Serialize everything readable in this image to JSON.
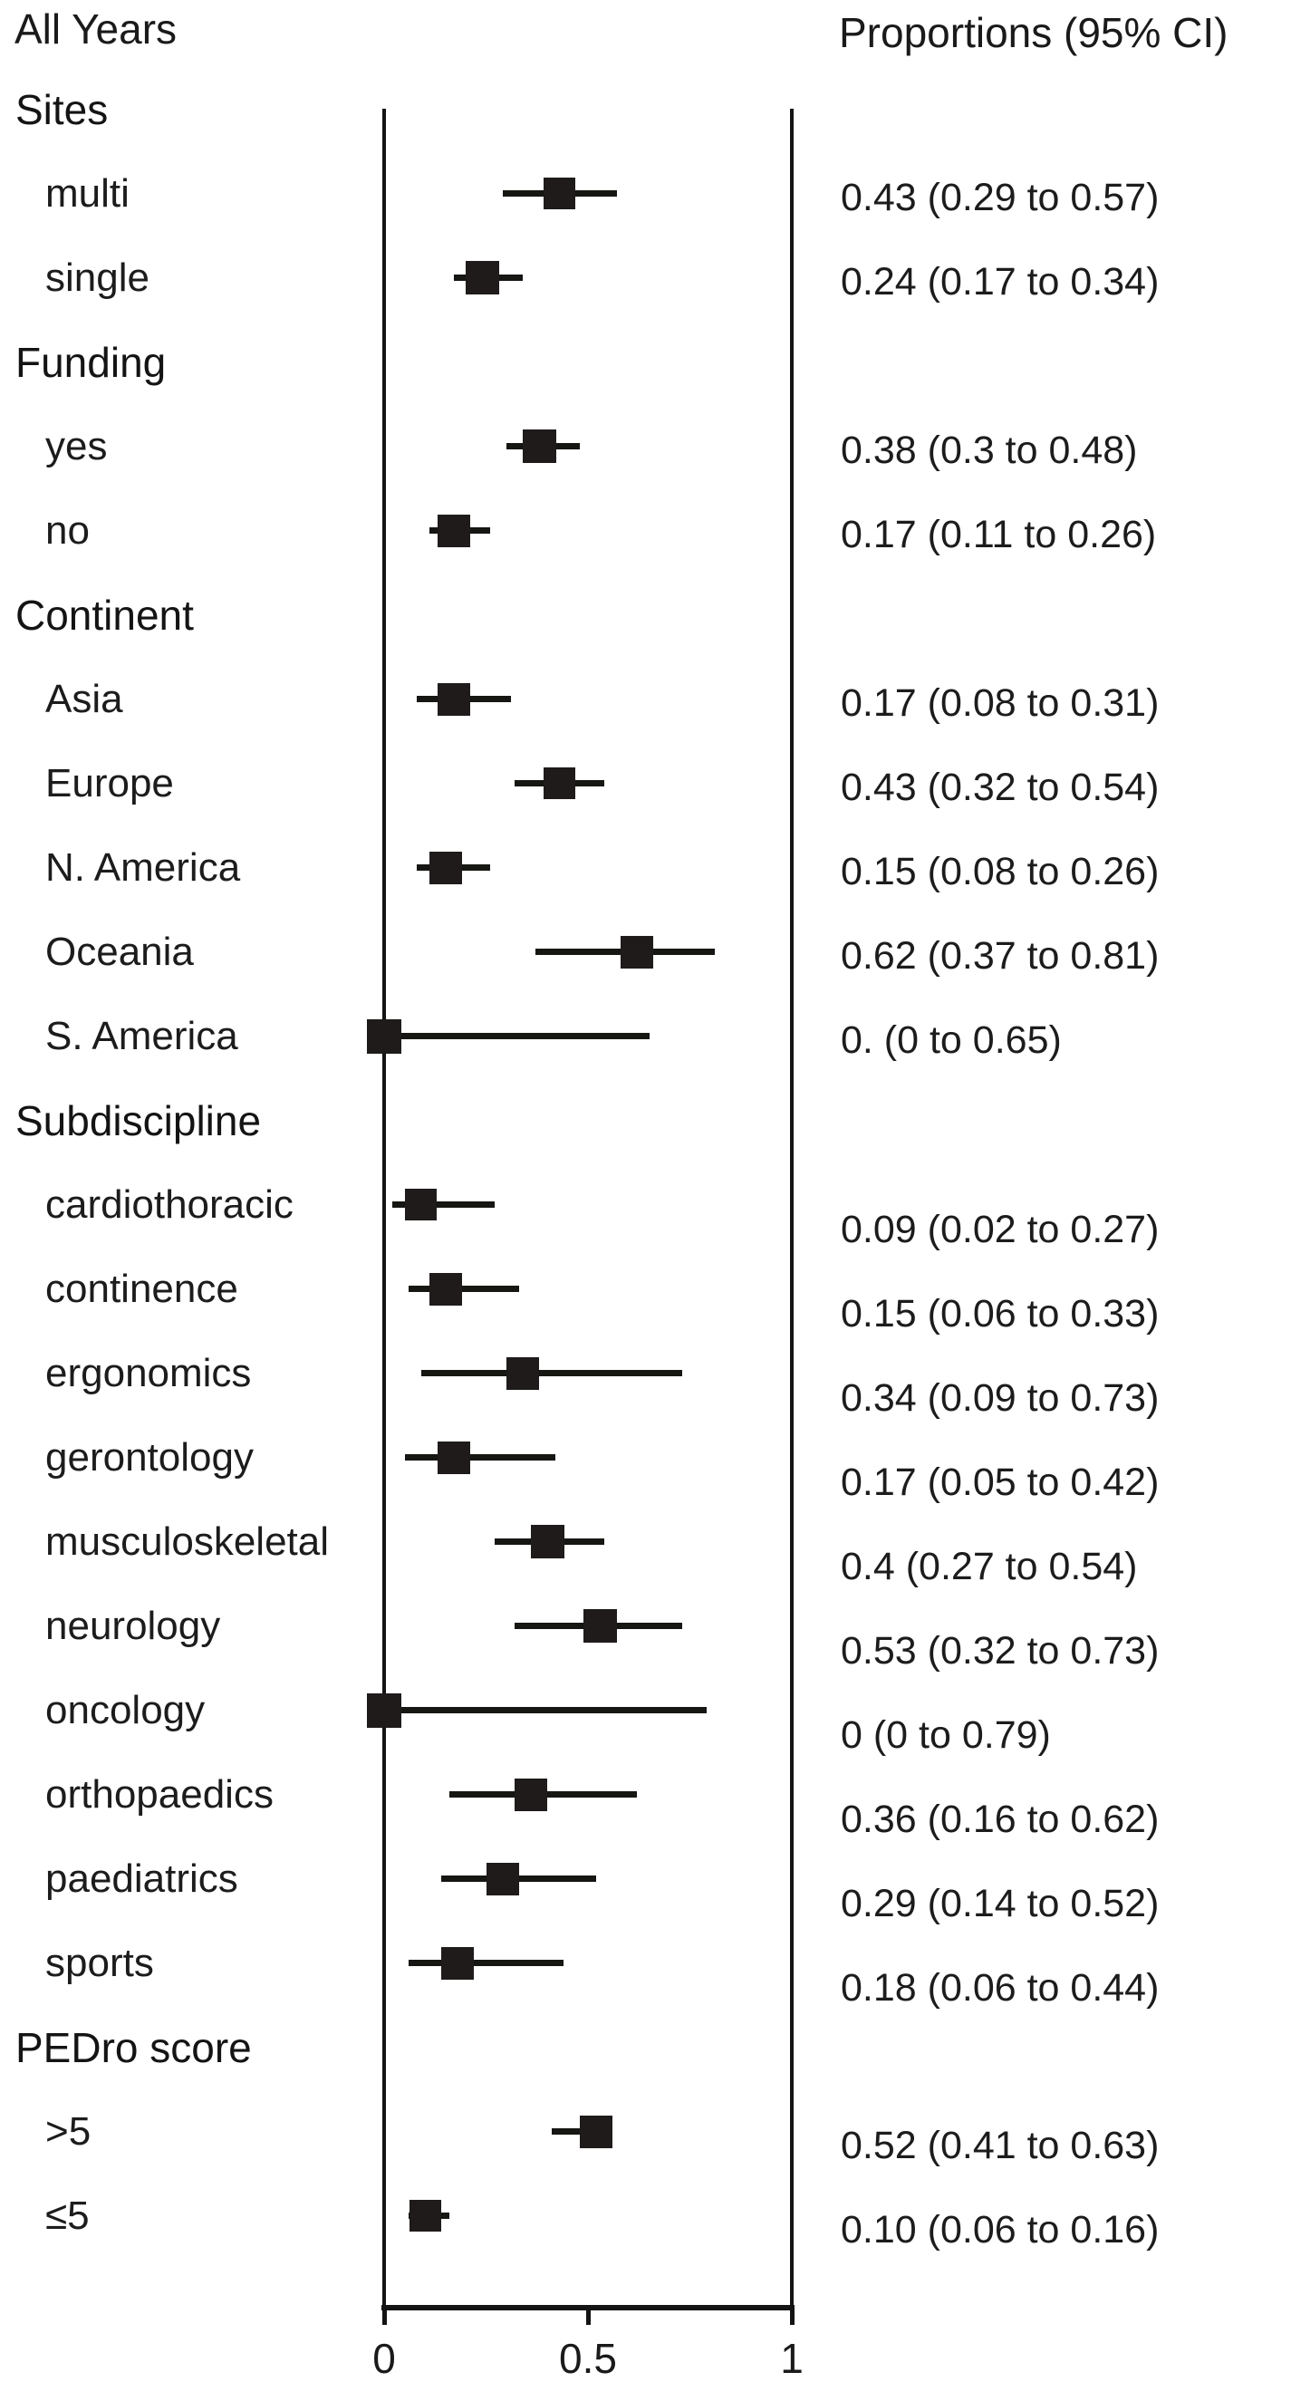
{
  "colors": {
    "ink": "#1a1a1a",
    "marker": "#1e1b1a",
    "background": "#ffffff"
  },
  "chart_data": {
    "type": "forest",
    "title": "All Years",
    "value_header": "Proportions (95% CI)",
    "xlabel": "",
    "xlim": [
      0,
      1
    ],
    "x_tick_values": [
      0,
      0.5,
      1
    ],
    "x_tick_labels": [
      "0",
      "0.5",
      "1"
    ],
    "legend": "none",
    "grid": false,
    "groups": [
      {
        "label": "Sites",
        "rows": [
          {
            "label": "multi",
            "est": 0.43,
            "lo": 0.29,
            "hi": 0.57,
            "text": "0.43 (0.29 to 0.57)",
            "box": 35
          },
          {
            "label": "single",
            "est": 0.24,
            "lo": 0.17,
            "hi": 0.34,
            "text": "0.24 (0.17 to 0.34)",
            "box": 37
          }
        ]
      },
      {
        "label": "Funding",
        "rows": [
          {
            "label": "yes",
            "est": 0.38,
            "lo": 0.3,
            "hi": 0.48,
            "text": "0.38 (0.3 to 0.48)",
            "box": 37
          },
          {
            "label": "no",
            "est": 0.17,
            "lo": 0.11,
            "hi": 0.26,
            "text": "0.17 (0.11 to 0.26)",
            "box": 36
          }
        ]
      },
      {
        "label": "Continent",
        "rows": [
          {
            "label": "Asia",
            "est": 0.17,
            "lo": 0.08,
            "hi": 0.31,
            "text": "0.17 (0.08 to 0.31)",
            "box": 36
          },
          {
            "label": "Europe",
            "est": 0.43,
            "lo": 0.32,
            "hi": 0.54,
            "text": "0.43 (0.32 to 0.54)",
            "box": 35
          },
          {
            "label": "N. America",
            "est": 0.15,
            "lo": 0.08,
            "hi": 0.26,
            "text": "0.15 (0.08 to 0.26)",
            "box": 36
          },
          {
            "label": "Oceania",
            "est": 0.62,
            "lo": 0.37,
            "hi": 0.81,
            "text": "0.62 (0.37 to 0.81)",
            "box": 36
          },
          {
            "label": "S. America",
            "est": 0.0,
            "lo": 0.0,
            "hi": 0.65,
            "text": "0. (0 to 0.65)",
            "box": 38
          }
        ]
      },
      {
        "label": "Subdiscipline",
        "rows": [
          {
            "label": "cardiothoracic",
            "est": 0.09,
            "lo": 0.02,
            "hi": 0.27,
            "text": "0.09 (0.02 to 0.27)",
            "box": 35
          },
          {
            "label": "continence",
            "est": 0.15,
            "lo": 0.06,
            "hi": 0.33,
            "text": "0.15 (0.06 to 0.33)",
            "box": 36
          },
          {
            "label": "ergonomics",
            "est": 0.34,
            "lo": 0.09,
            "hi": 0.73,
            "text": "0.34 (0.09 to 0.73)",
            "box": 36
          },
          {
            "label": "gerontology",
            "est": 0.17,
            "lo": 0.05,
            "hi": 0.42,
            "text": "0.17 (0.05 to 0.42)",
            "box": 36
          },
          {
            "label": "musculoskeletal",
            "est": 0.4,
            "lo": 0.27,
            "hi": 0.54,
            "text": "0.4 (0.27 to 0.54)",
            "box": 37
          },
          {
            "label": "neurology",
            "est": 0.53,
            "lo": 0.32,
            "hi": 0.73,
            "text": "0.53 (0.32 to 0.73)",
            "box": 37
          },
          {
            "label": "oncology",
            "est": 0.0,
            "lo": 0.0,
            "hi": 0.79,
            "text": "0 (0 to 0.79)",
            "box": 38
          },
          {
            "label": "orthopaedics",
            "est": 0.36,
            "lo": 0.16,
            "hi": 0.62,
            "text": "0.36 (0.16 to 0.62)",
            "box": 36
          },
          {
            "label": "paediatrics",
            "est": 0.29,
            "lo": 0.14,
            "hi": 0.52,
            "text": "0.29 (0.14 to 0.52)",
            "box": 36
          },
          {
            "label": "sports",
            "est": 0.18,
            "lo": 0.06,
            "hi": 0.44,
            "text": "0.18 (0.06 to 0.44)",
            "box": 36
          }
        ]
      },
      {
        "label": "PEDro score",
        "rows": [
          {
            "label": ">5",
            "est": 0.52,
            "lo": 0.41,
            "hi": 0.63,
            "text": "0.52 (0.41 to 0.63)",
            "box": 36,
            "clip_hi": true
          },
          {
            "label": "≤5",
            "est": 0.1,
            "lo": 0.06,
            "hi": 0.16,
            "text": "0.10 (0.06 to 0.16)",
            "box": 35
          }
        ]
      }
    ]
  }
}
